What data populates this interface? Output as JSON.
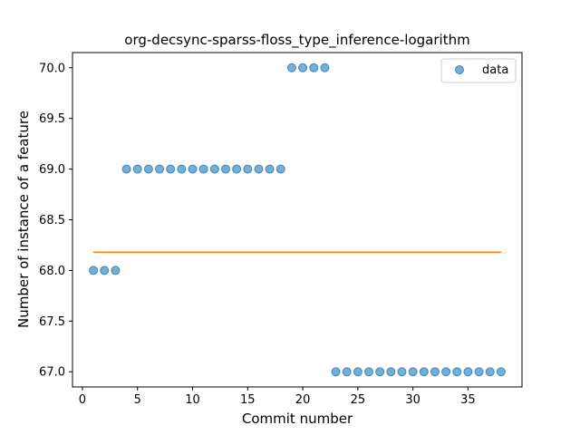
{
  "chart_data": {
    "type": "scatter",
    "title": "org-decsync-sparss-floss_type_inference-logarithm",
    "xlabel": "Commit number",
    "ylabel": "Number of instance of a feature",
    "xlim": [
      -0.9,
      39.9
    ],
    "ylim": [
      66.85,
      70.15
    ],
    "x_ticks": [
      0,
      5,
      10,
      15,
      20,
      25,
      30,
      35
    ],
    "x_tick_labels": [
      "0",
      "5",
      "10",
      "15",
      "20",
      "25",
      "30",
      "35"
    ],
    "y_ticks": [
      67.0,
      67.5,
      68.0,
      68.5,
      69.0,
      69.5,
      70.0
    ],
    "y_tick_labels": [
      "67.0",
      "67.5",
      "68.0",
      "68.5",
      "69.0",
      "69.5",
      "70.0"
    ],
    "grid": false,
    "legend_position": "top-right",
    "series": [
      {
        "name": "data",
        "kind": "scatter",
        "color": "#1f77b4",
        "x": [
          1,
          2,
          3,
          4,
          5,
          6,
          7,
          8,
          9,
          10,
          11,
          12,
          13,
          14,
          15,
          16,
          17,
          18,
          19,
          20,
          21,
          22,
          23,
          24,
          25,
          26,
          27,
          28,
          29,
          30,
          31,
          32,
          33,
          34,
          35,
          36,
          37,
          38
        ],
        "y": [
          68,
          68,
          68,
          69,
          69,
          69,
          69,
          69,
          69,
          69,
          69,
          69,
          69,
          69,
          69,
          69,
          69,
          69,
          70,
          70,
          70,
          70,
          67,
          67,
          67,
          67,
          67,
          67,
          67,
          67,
          67,
          67,
          67,
          67,
          67,
          67,
          67,
          67
        ]
      },
      {
        "kind": "line",
        "color": "#ff7f0e",
        "x": [
          1,
          38
        ],
        "y": [
          68.18,
          68.18
        ]
      }
    ]
  },
  "colors": {
    "scatter": "#1f77b4",
    "fit_line": "#ff7f0e",
    "axes": "#000000",
    "legend_border": "#cccccc"
  }
}
